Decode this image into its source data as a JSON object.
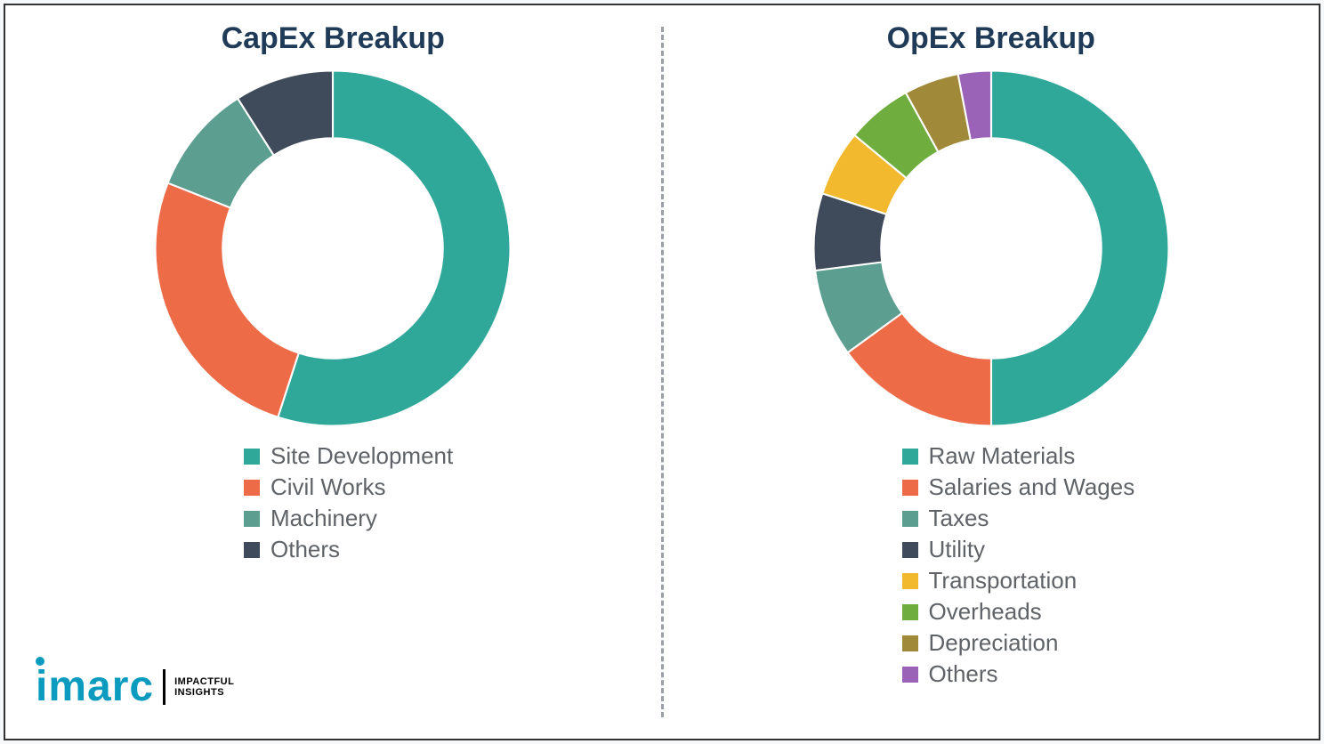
{
  "background_color": "#ffffff",
  "frame_border_color": "#333333",
  "divider_color": "#9aa0a6",
  "title_color": "#1f3b57",
  "title_fontsize": 34,
  "legend_text_color": "#5f6368",
  "legend_fontsize": 26,
  "swatch_size": 18,
  "logo": {
    "word": "imarc",
    "word_color": "#0a9bbf",
    "tag_line1": "IMPACTFUL",
    "tag_line2": "INSIGHTS"
  },
  "capex": {
    "title": "CapEx Breakup",
    "type": "donut",
    "inner_radius_ratio": 0.62,
    "slices": [
      {
        "label": "Site Development",
        "value": 55,
        "color": "#2fa89a"
      },
      {
        "label": "Civil Works",
        "value": 26,
        "color": "#ed6b47"
      },
      {
        "label": "Machinery",
        "value": 10,
        "color": "#5c9e90"
      },
      {
        "label": "Others",
        "value": 9,
        "color": "#3f4a5a"
      }
    ]
  },
  "opex": {
    "title": "OpEx Breakup",
    "type": "donut",
    "inner_radius_ratio": 0.62,
    "slices": [
      {
        "label": "Raw Materials",
        "value": 50,
        "color": "#2fa89a"
      },
      {
        "label": "Salaries and Wages",
        "value": 15,
        "color": "#ed6b47"
      },
      {
        "label": "Taxes",
        "value": 8,
        "color": "#5c9e90"
      },
      {
        "label": "Utility",
        "value": 7,
        "color": "#3f4a5a"
      },
      {
        "label": "Transportation",
        "value": 6,
        "color": "#f2b92e"
      },
      {
        "label": "Overheads",
        "value": 6,
        "color": "#6fae3e"
      },
      {
        "label": "Depreciation",
        "value": 5,
        "color": "#a08a3a"
      },
      {
        "label": "Others",
        "value": 3,
        "color": "#9a63b8"
      }
    ]
  }
}
